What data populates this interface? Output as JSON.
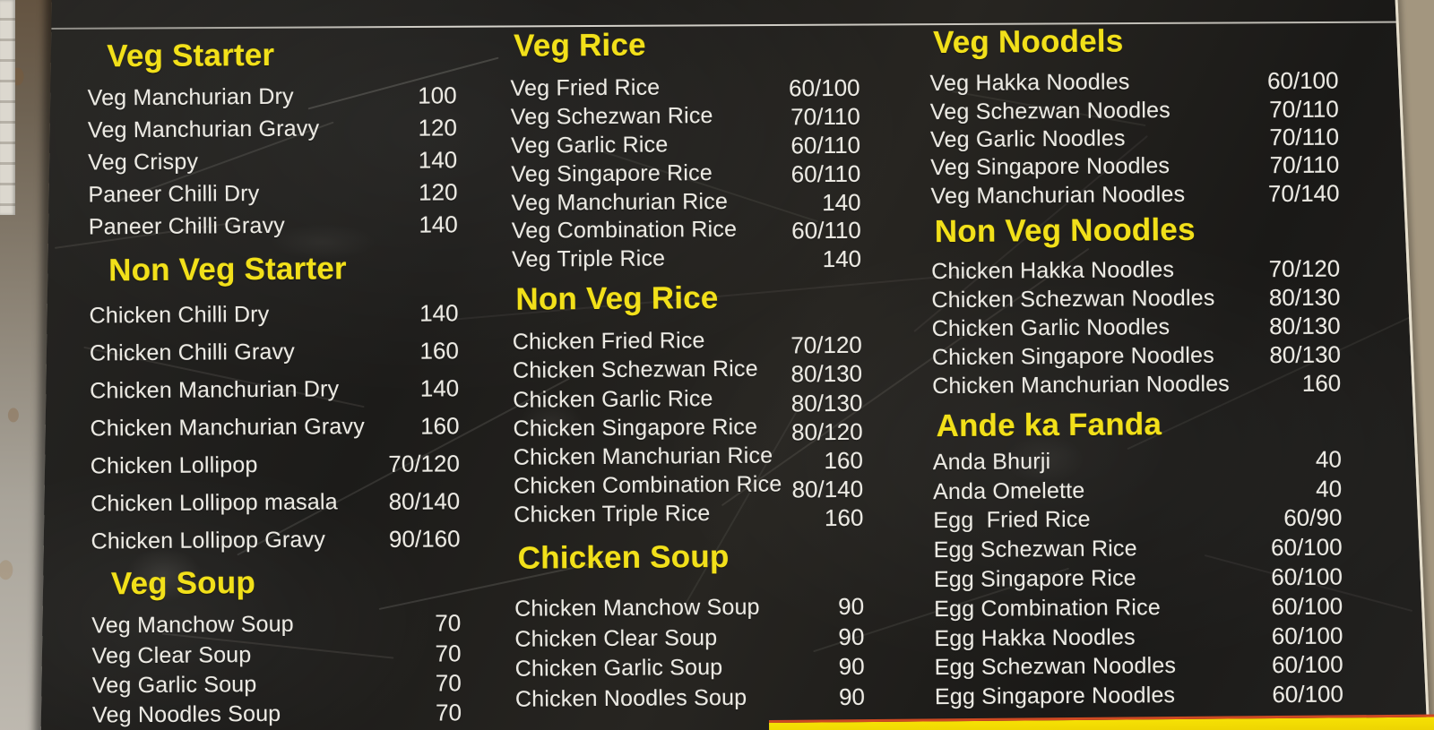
{
  "colors": {
    "board_background": "#1e1d1b",
    "header_yellow": "#f2e01a",
    "item_text": "#eceae3",
    "bottom_strip_yellow": "#f4dd04",
    "bottom_strip_red": "#cf4a22"
  },
  "menu": {
    "columns": [
      {
        "sections": [
          {
            "title": "Veg Starter",
            "items": [
              {
                "name": "Veg Manchurian Dry",
                "price": "100"
              },
              {
                "name": "Veg Manchurian Gravy",
                "price": "120"
              },
              {
                "name": "Veg Crispy",
                "price": "140"
              },
              {
                "name": "Paneer Chilli Dry",
                "price": "120"
              },
              {
                "name": "Paneer Chilli Gravy",
                "price": "140"
              }
            ]
          },
          {
            "title": "Non Veg Starter",
            "items": [
              {
                "name": "Chicken Chilli Dry",
                "price": "140"
              },
              {
                "name": "Chicken Chilli Gravy",
                "price": "160"
              },
              {
                "name": "Chicken Manchurian Dry",
                "price": "140"
              },
              {
                "name": "Chicken Manchurian Gravy",
                "price": "160"
              },
              {
                "name": "Chicken Lollipop",
                "price": "70/120"
              },
              {
                "name": "Chicken Lollipop masala",
                "price": "80/140"
              },
              {
                "name": "Chicken Lollipop Gravy",
                "price": "90/160"
              }
            ]
          },
          {
            "title": "Veg Soup",
            "items": [
              {
                "name": "Veg Manchow Soup",
                "price": "70"
              },
              {
                "name": "Veg Clear Soup",
                "price": "70"
              },
              {
                "name": "Veg Garlic Soup",
                "price": "70"
              },
              {
                "name": "Veg Noodles Soup",
                "price": "70"
              }
            ]
          }
        ]
      },
      {
        "sections": [
          {
            "title": "Veg Rice",
            "items": [
              {
                "name": "Veg Fried Rice",
                "price": "60/100"
              },
              {
                "name": "Veg Schezwan Rice",
                "price": "70/110"
              },
              {
                "name": "Veg Garlic Rice",
                "price": "60/110"
              },
              {
                "name": "Veg Singapore Rice",
                "price": "60/110"
              },
              {
                "name": "Veg Manchurian Rice",
                "price": "140"
              },
              {
                "name": "Veg Combination Rice",
                "price": "60/110"
              },
              {
                "name": "Veg Triple Rice",
                "price": "140"
              }
            ]
          },
          {
            "title": "Non Veg Rice",
            "items": [
              {
                "name": "Chicken Fried Rice",
                "price": "70/120"
              },
              {
                "name": "Chicken Schezwan Rice",
                "price": "80/130"
              },
              {
                "name": "Chicken Garlic Rice",
                "price": "80/130"
              },
              {
                "name": "Chicken Singapore Rice",
                "price": "80/120"
              },
              {
                "name": "Chicken Manchurian Rice",
                "price": "160"
              },
              {
                "name": "Chicken Combination Rice",
                "price": "80/140"
              },
              {
                "name": "Chicken Triple Rice",
                "price": "160"
              }
            ]
          },
          {
            "title": "Chicken Soup",
            "items": [
              {
                "name": "Chicken Manchow Soup",
                "price": "90"
              },
              {
                "name": "Chicken Clear Soup",
                "price": "90"
              },
              {
                "name": "Chicken Garlic Soup",
                "price": "90"
              },
              {
                "name": "Chicken Noodles Soup",
                "price": "90"
              }
            ]
          }
        ]
      },
      {
        "sections": [
          {
            "title": "Veg Noodels",
            "items": [
              {
                "name": "Veg Hakka Noodles",
                "price": "60/100"
              },
              {
                "name": "Veg Schezwan Noodles",
                "price": "70/110"
              },
              {
                "name": "Veg Garlic Noodles",
                "price": "70/110"
              },
              {
                "name": "Veg Singapore Noodles",
                "price": "70/110"
              },
              {
                "name": "Veg Manchurian Noodles",
                "price": "70/140"
              }
            ]
          },
          {
            "title": "Non Veg Noodles",
            "items": [
              {
                "name": "Chicken Hakka Noodles",
                "price": "70/120"
              },
              {
                "name": "Chicken Schezwan Noodles",
                "price": "80/130"
              },
              {
                "name": "Chicken Garlic Noodles",
                "price": "80/130"
              },
              {
                "name": "Chicken Singapore Noodles",
                "price": "80/130"
              },
              {
                "name": "Chicken Manchurian Noodles",
                "price": "160"
              }
            ]
          },
          {
            "title": "Ande ka Fanda",
            "items": [
              {
                "name": "Anda Bhurji",
                "price": "40"
              },
              {
                "name": "Anda Omelette",
                "price": "40"
              },
              {
                "name": "Egg  Fried Rice",
                "price": "60/90"
              },
              {
                "name": "Egg Schezwan Rice",
                "price": "60/100"
              },
              {
                "name": "Egg Singapore Rice",
                "price": "60/100"
              },
              {
                "name": "Egg Combination Rice",
                "price": "60/100"
              },
              {
                "name": "Egg Hakka Noodles",
                "price": "60/100"
              },
              {
                "name": "Egg Schezwan Noodles",
                "price": "60/100"
              },
              {
                "name": "Egg Singapore Noodles",
                "price": "60/100"
              }
            ]
          }
        ]
      }
    ]
  }
}
